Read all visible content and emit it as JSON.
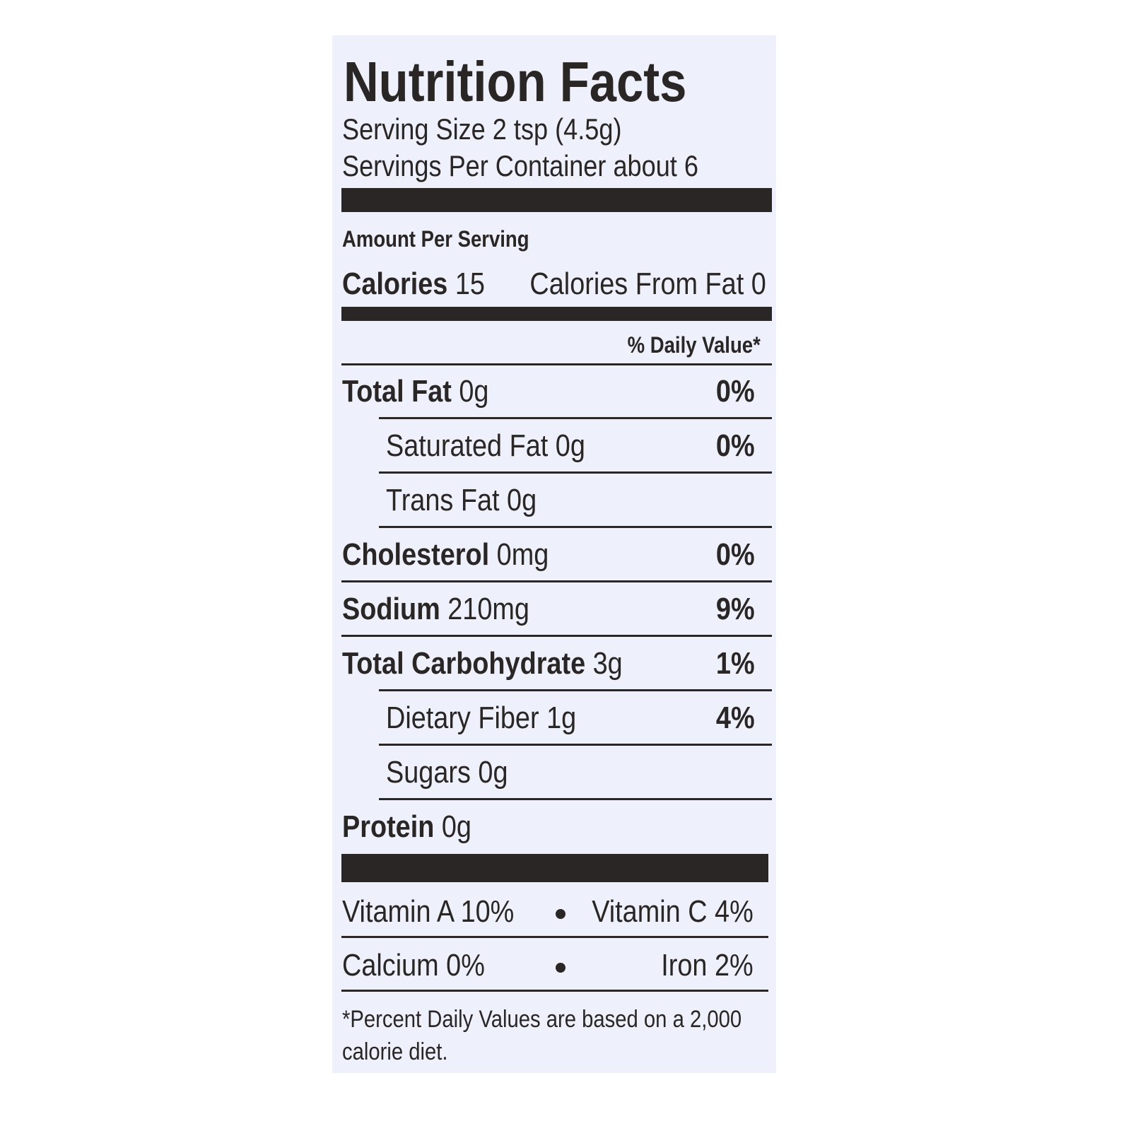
{
  "title": "Nutrition Facts",
  "serving_size": "Serving Size 2 tsp (4.5g)",
  "servings_per_container": "Servings Per Container about 6",
  "amount_per_serving": "Amount Per Serving",
  "calories": {
    "label": "Calories",
    "value": "15"
  },
  "calories_from_fat": "Calories From Fat 0",
  "daily_value_header": "% Daily Value*",
  "nutrients": [
    {
      "name": "Total Fat",
      "amount": "0g",
      "dv": "0%",
      "sub": false
    },
    {
      "name": "Saturated Fat",
      "amount": "0g",
      "dv": "0%",
      "sub": true
    },
    {
      "name": "Trans Fat",
      "amount": "0g",
      "dv": null,
      "sub": true
    },
    {
      "name": "Cholesterol",
      "amount": "0mg",
      "dv": "0%",
      "sub": false
    },
    {
      "name": "Sodium",
      "amount": "210mg",
      "dv": "9%",
      "sub": false
    },
    {
      "name": "Total Carbohydrate",
      "amount": "3g",
      "dv": "1%",
      "sub": false
    },
    {
      "name": "Dietary Fiber",
      "amount": "1g",
      "dv": "4%",
      "sub": true
    },
    {
      "name": "Sugars",
      "amount": "0g",
      "dv": null,
      "sub": true
    },
    {
      "name": "Protein",
      "amount": "0g",
      "dv": null,
      "sub": false
    }
  ],
  "vitamins": [
    [
      "Vitamin A 10%",
      "Vitamin C 4%"
    ],
    [
      "Calcium 0%",
      "Iron 2%"
    ]
  ],
  "footnote": "*Percent Daily Values are based on a 2,000 calorie diet."
}
